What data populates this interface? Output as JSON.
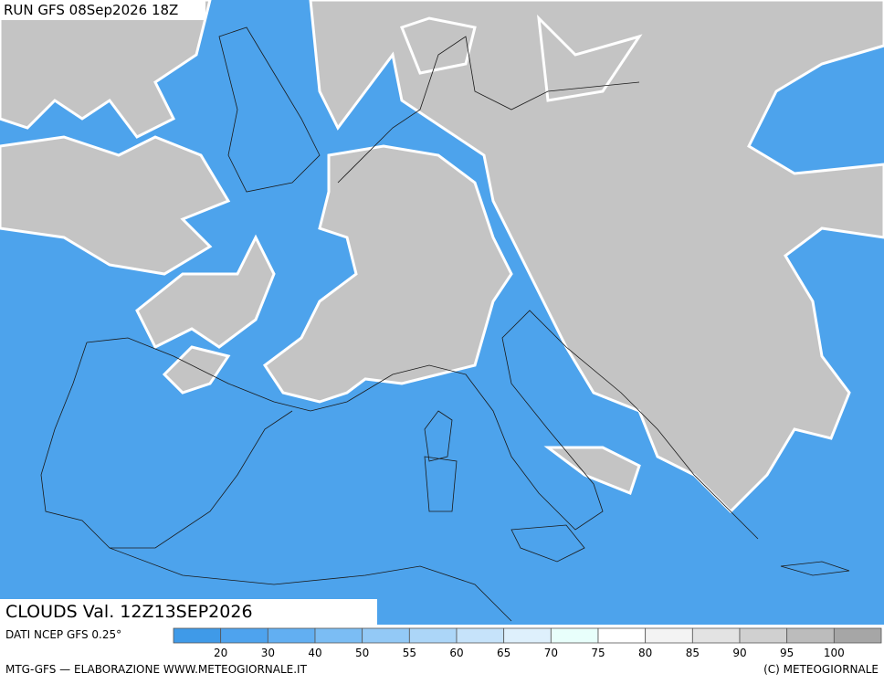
{
  "header": {
    "run": "RUN GFS 08Sep2026 18Z",
    "field": "CLOUDS Val. 12Z13SEP2026"
  },
  "footer": {
    "source": "DATI NCEP GFS 0.25°",
    "credit": "MTG-GFS — ELABORAZIONE WWW.METEOGIORNALE.IT",
    "copyright": "(C) METEOGIORNALE"
  },
  "legend": {
    "labels": [
      20,
      30,
      40,
      50,
      55,
      60,
      65,
      70,
      75,
      80,
      85,
      90,
      95,
      100
    ],
    "colors": [
      "#3f9ae8",
      "#4ea3ee",
      "#62aff2",
      "#7bbdf4",
      "#93c9f6",
      "#acd6f8",
      "#c6e3fa",
      "#def0fc",
      "#e8fffb",
      "#ffffff",
      "#f3f3f3",
      "#e3e3e3",
      "#d0d0d0",
      "#bcbcbc",
      "#a6a6a6"
    ]
  }
}
